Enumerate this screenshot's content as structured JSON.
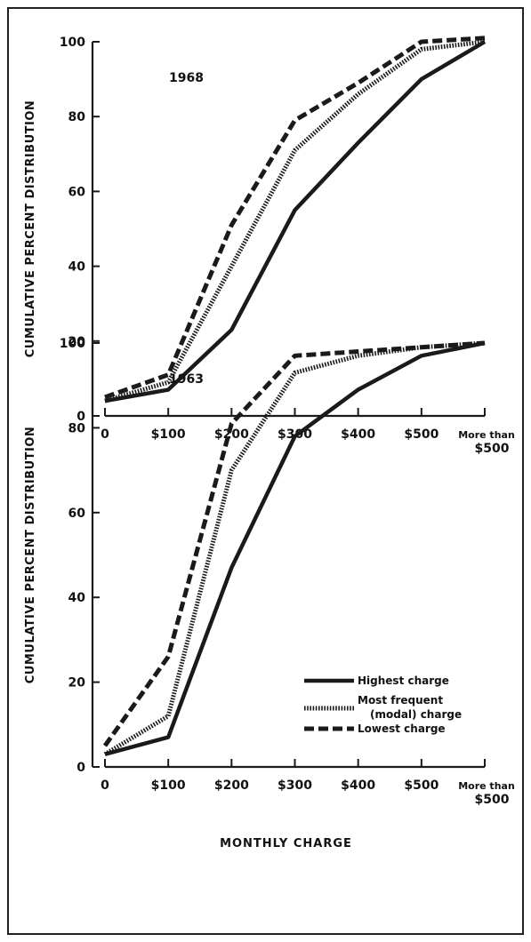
{
  "chart_data": [
    {
      "type": "line",
      "title": "1968",
      "ylabel": "CUMULATIVE PERCENT DISTRIBUTION",
      "xlabel": "",
      "categories": [
        "0",
        "$100",
        "$200",
        "$300",
        "$400",
        "$500",
        "More than $500"
      ],
      "ylim": [
        0,
        100
      ],
      "yticks": [
        "0",
        "20",
        "40",
        "60",
        "80",
        "100"
      ],
      "series": [
        {
          "name": "Highest charge",
          "style": "solid",
          "values": [
            4,
            7,
            23,
            55,
            73,
            90,
            100
          ]
        },
        {
          "name": "Most frequent (modal) charge",
          "style": "dotted",
          "values": [
            4,
            9,
            40,
            71,
            86,
            98,
            100
          ]
        },
        {
          "name": "Lowest charge",
          "style": "dashed",
          "values": [
            5,
            11,
            51,
            79,
            89,
            100,
            101
          ]
        }
      ]
    },
    {
      "type": "line",
      "title": "1963",
      "ylabel": "CUMULATIVE PERCENT DISTRIBUTION",
      "xlabel": "MONTHLY CHARGE",
      "categories": [
        "0",
        "$100",
        "$200",
        "$300",
        "$400",
        "$500",
        "More than $500"
      ],
      "ylim": [
        0,
        100
      ],
      "yticks": [
        "0",
        "20",
        "40",
        "60",
        "80",
        "100"
      ],
      "series": [
        {
          "name": "Highest charge",
          "style": "solid",
          "values": [
            3,
            7,
            47,
            78,
            89,
            97,
            100
          ]
        },
        {
          "name": "Most frequent (modal) charge",
          "style": "dotted",
          "values": [
            3,
            12,
            70,
            93,
            97,
            99,
            100
          ]
        },
        {
          "name": "Lowest charge",
          "style": "dashed",
          "values": [
            5,
            26,
            81,
            97,
            98,
            99,
            100
          ]
        }
      ]
    }
  ],
  "legend": {
    "placement": "inside-lower-right of bottom chart",
    "items": [
      {
        "style": "solid",
        "label_lines": [
          "Highest charge"
        ]
      },
      {
        "style": "dotted",
        "label_lines": [
          "Most frequent",
          "(modal) charge"
        ]
      },
      {
        "style": "dashed",
        "label_lines": [
          "Lowest charge"
        ]
      }
    ]
  },
  "colors": {
    "ink": "#1a1a1a",
    "background": "#ffffff"
  }
}
